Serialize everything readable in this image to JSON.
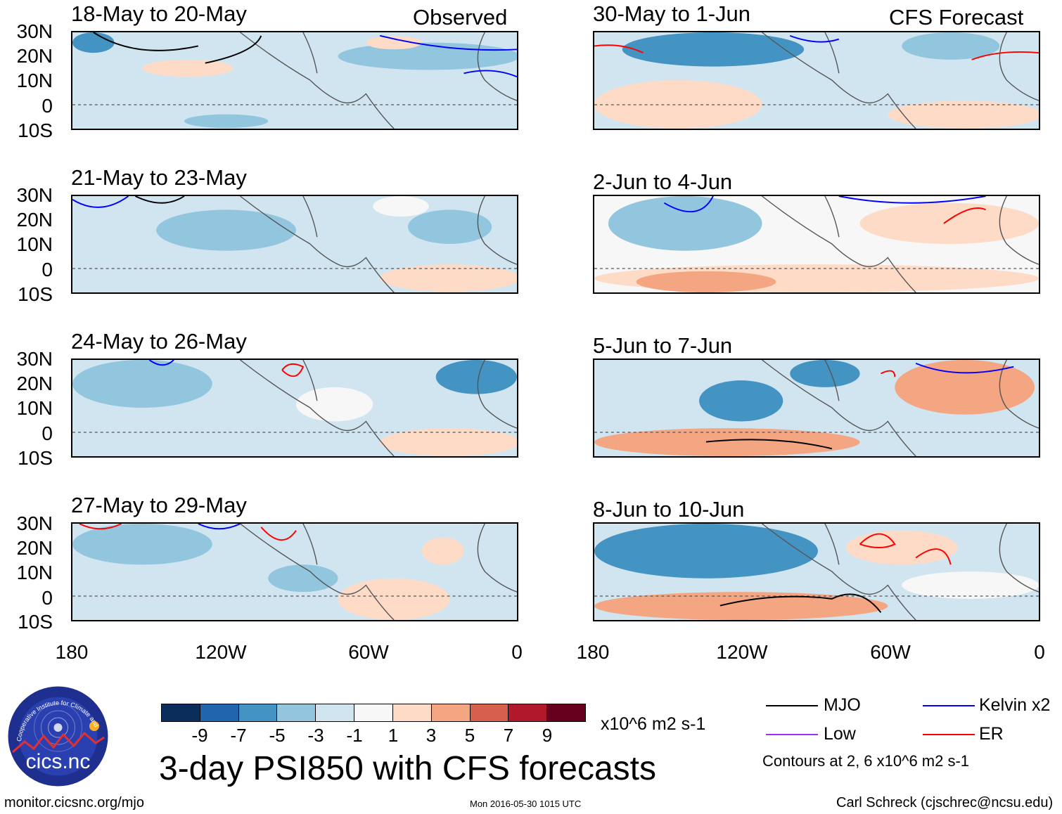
{
  "figure": {
    "title": "3-day PSI850 with CFS forecasts",
    "units": "x10^6 m2 s-1",
    "footer_left": "monitor.cicsnc.org/mjo",
    "footer_center": "Mon 2016-05-30 1015 UTC",
    "footer_right": "Carl Schreck (cjschrec@ncsu.edu)",
    "logo_text": "cics.nc",
    "logo_ring_text": "Cooperative Institute for Climate and Satellites",
    "contour_note": "Contours at 2, 6 x10^6 m2 s-1"
  },
  "columns": {
    "left_tag": "Observed",
    "right_tag": "CFS Forecast"
  },
  "axes": {
    "lat_ticks": [
      "30N",
      "20N",
      "10N",
      "0",
      "10S"
    ],
    "lon_ticks": [
      "180",
      "120W",
      "60W",
      "0"
    ]
  },
  "panels": [
    {
      "title": "18-May to 20-May",
      "source": "Observed"
    },
    {
      "title": "21-May to 23-May",
      "source": "Observed"
    },
    {
      "title": "24-May to 26-May",
      "source": "Observed"
    },
    {
      "title": "27-May to 29-May",
      "source": "Observed"
    },
    {
      "title": "30-May to 1-Jun",
      "source": "CFS Forecast"
    },
    {
      "title": "2-Jun to 4-Jun",
      "source": "CFS Forecast"
    },
    {
      "title": "5-Jun to 7-Jun",
      "source": "CFS Forecast"
    },
    {
      "title": "8-Jun to 10-Jun",
      "source": "CFS Forecast"
    }
  ],
  "colorbar": {
    "colors": [
      "#0b2d5c",
      "#2166ac",
      "#4393c3",
      "#92c5de",
      "#d1e5f0",
      "#f7f7f7",
      "#fddbc7",
      "#f4a582",
      "#d6604d",
      "#b2182b",
      "#67001f"
    ],
    "labels": [
      "-9",
      "-7",
      "-5",
      "-3",
      "-1",
      "1",
      "3",
      "5",
      "7",
      "9"
    ]
  },
  "legend": [
    {
      "label": "MJO",
      "color": "#000000"
    },
    {
      "label": "Kelvin x2",
      "color": "#0000ff"
    },
    {
      "label": "Low",
      "color": "#9b30ff"
    },
    {
      "label": "ER",
      "color": "#ff0000"
    }
  ],
  "colors": {
    "ocean": "#f7f7f7",
    "neg_light": "#d1e5f0",
    "neg_mid": "#92c5de",
    "neg_strong": "#4393c3",
    "pos_light": "#fddbc7",
    "pos_mid": "#f4a582",
    "coast": "#555555"
  }
}
